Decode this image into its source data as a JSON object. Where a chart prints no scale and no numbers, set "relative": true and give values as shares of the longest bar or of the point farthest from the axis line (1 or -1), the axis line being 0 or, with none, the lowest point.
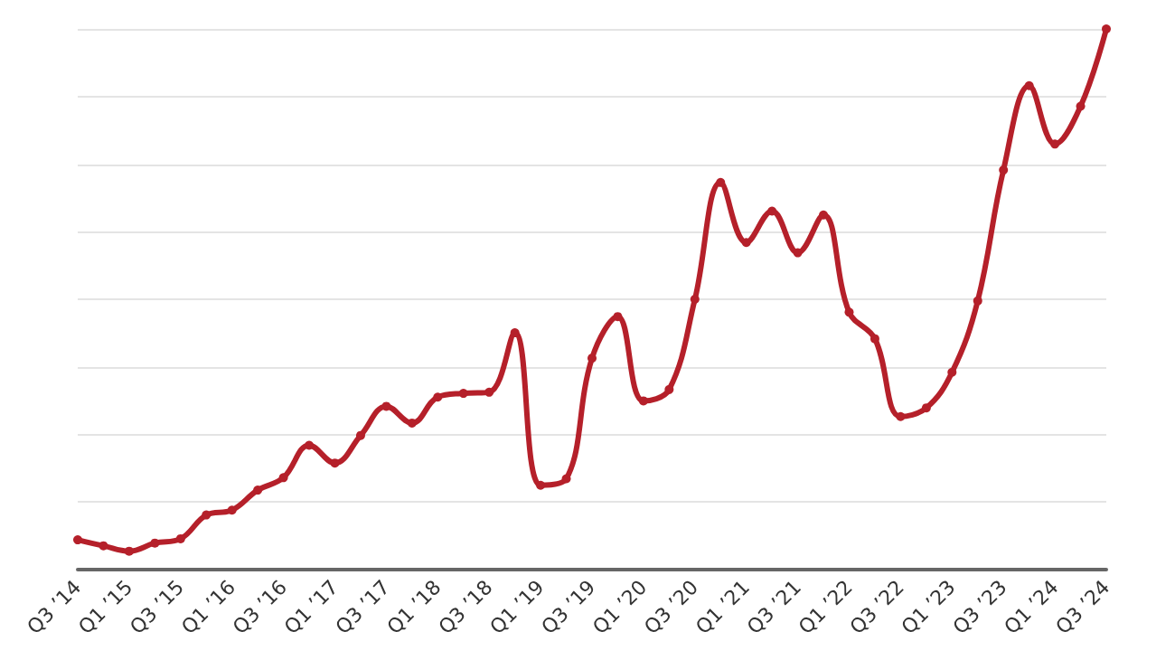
{
  "chart_data": {
    "type": "line",
    "relative": true,
    "grid": "y",
    "marker": "circle",
    "line_style": "solid",
    "categories": [
      "Q3 ’14",
      null,
      "Q1 ’15",
      null,
      "Q3 ’15",
      null,
      "Q1 ’16",
      null,
      "Q3 ’16",
      null,
      "Q1 ’17",
      null,
      "Q3 ’17",
      null,
      "Q1 ’18",
      null,
      "Q3 ’18",
      null,
      "Q1 ’19",
      null,
      "Q3 ’19",
      null,
      "Q1 ’20",
      null,
      "Q3 ’20",
      null,
      "Q1 ’21",
      null,
      "Q3 ’21",
      null,
      "Q1 ’22",
      null,
      "Q3 ’22",
      null,
      "Q1 ’23",
      null,
      "Q3 ’23",
      null,
      "Q1 ’24",
      null,
      "Q3 ’24"
    ],
    "series": [
      {
        "color": "#b5202a",
        "values": [
          0.055,
          0.044,
          0.034,
          0.049,
          0.057,
          0.101,
          0.11,
          0.147,
          0.17,
          0.23,
          0.197,
          0.248,
          0.302,
          0.271,
          0.319,
          0.326,
          0.328,
          0.438,
          0.156,
          0.168,
          0.391,
          0.468,
          0.312,
          0.333,
          0.5,
          0.716,
          0.605,
          0.663,
          0.586,
          0.656,
          0.476,
          0.427,
          0.283,
          0.299,
          0.365,
          0.497,
          0.739,
          0.895,
          0.787,
          0.857,
          1
        ]
      }
    ]
  }
}
